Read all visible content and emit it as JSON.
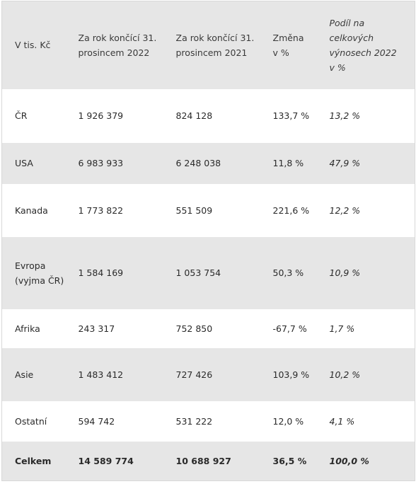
{
  "table": {
    "header": [
      "V tis. Kč",
      "Za rok končící 31. prosincem 2022",
      "Za rok končící 31. prosincem 2021",
      "Změna v %",
      "Podíl na celkových výnosech 2022 v %"
    ],
    "rows": [
      [
        "ČR",
        "1 926 379",
        "824 128",
        "133,7 %",
        "13,2 %"
      ],
      [
        "USA",
        "6 983 933",
        "6 248 038",
        "11,8 %",
        "47,9 %"
      ],
      [
        "Kanada",
        "1 773 822",
        "551 509",
        "221,6 %",
        "12,2 %"
      ],
      [
        "Evropa (vyjma ČR)",
        "1 584 169",
        "1 053 754",
        "50,3 %",
        "10,9 %"
      ],
      [
        "Afrika",
        "243 317",
        "752 850",
        "-67,7 %",
        "1,7 %"
      ],
      [
        "Asie",
        "1 483 412",
        "727 426",
        "103,9 %",
        "10,2 %"
      ],
      [
        "Ostatní",
        "594 742",
        "531 222",
        "12,0 %",
        "4,1 %"
      ]
    ],
    "total": [
      "Celkem",
      "14 589 774",
      "10 688 927",
      "36,5 %",
      "100,0 %"
    ]
  }
}
